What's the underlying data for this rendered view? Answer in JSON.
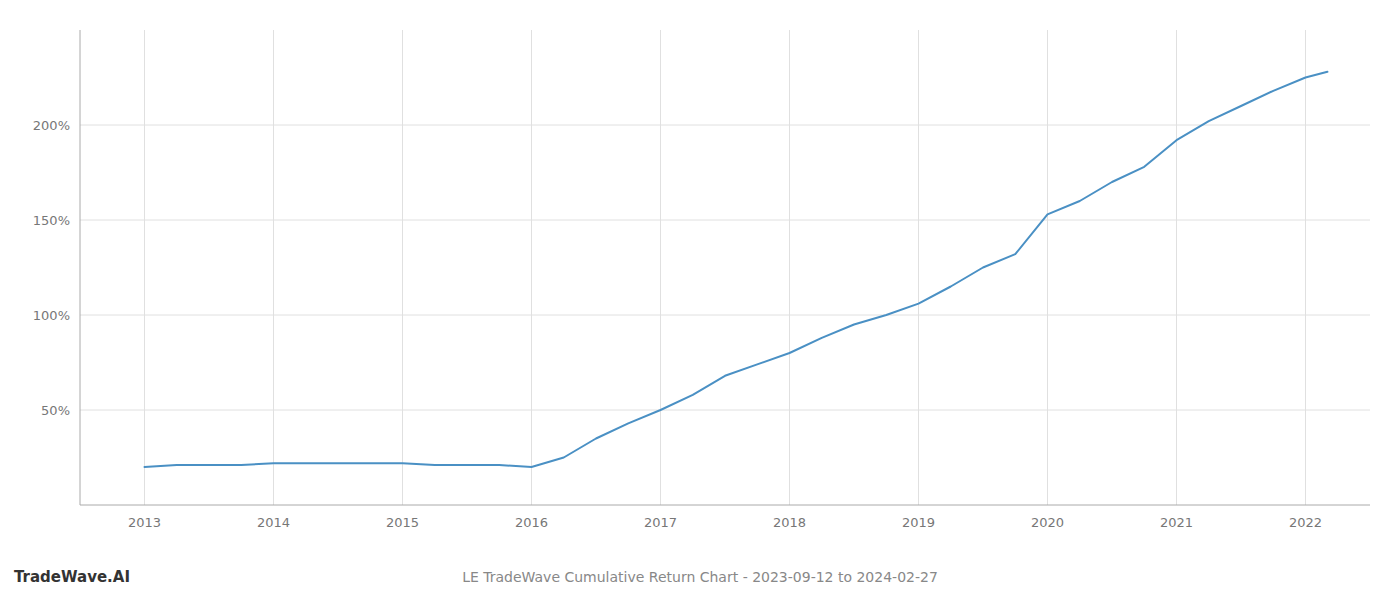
{
  "chart_data": {
    "type": "line",
    "title": "LE TradeWave Cumulative Return Chart - 2023-09-12 to 2024-02-27",
    "annotations": [
      "TradeWave.AI"
    ],
    "x": [
      2013.0,
      2013.25,
      2013.5,
      2013.75,
      2014.0,
      2014.25,
      2014.5,
      2014.75,
      2015.0,
      2015.25,
      2015.5,
      2015.75,
      2016.0,
      2016.25,
      2016.5,
      2016.75,
      2017.0,
      2017.25,
      2017.5,
      2017.75,
      2018.0,
      2018.25,
      2018.5,
      2018.75,
      2019.0,
      2019.25,
      2019.5,
      2019.75,
      2020.0,
      2020.25,
      2020.5,
      2020.75,
      2021.0,
      2021.25,
      2021.5,
      2021.75,
      2022.0,
      2022.17
    ],
    "values": [
      20,
      21,
      21,
      21,
      22,
      22,
      22,
      22,
      22,
      21,
      21,
      21,
      20,
      25,
      35,
      43,
      50,
      58,
      68,
      74,
      80,
      88,
      95,
      100,
      106,
      115,
      125,
      132,
      153,
      160,
      170,
      178,
      192,
      202,
      210,
      218,
      225,
      228
    ],
    "color": "#4a90c4",
    "xlim": [
      2012.5,
      2022.5
    ],
    "ylim": [
      0,
      250
    ],
    "xticks": [
      2013,
      2014,
      2015,
      2016,
      2017,
      2018,
      2019,
      2020,
      2021,
      2022
    ],
    "yticks": [
      {
        "value": 50,
        "label": "50%"
      },
      {
        "value": 100,
        "label": "100%"
      },
      {
        "value": 150,
        "label": "150%"
      },
      {
        "value": 200,
        "label": "200%"
      }
    ],
    "grid": true
  }
}
